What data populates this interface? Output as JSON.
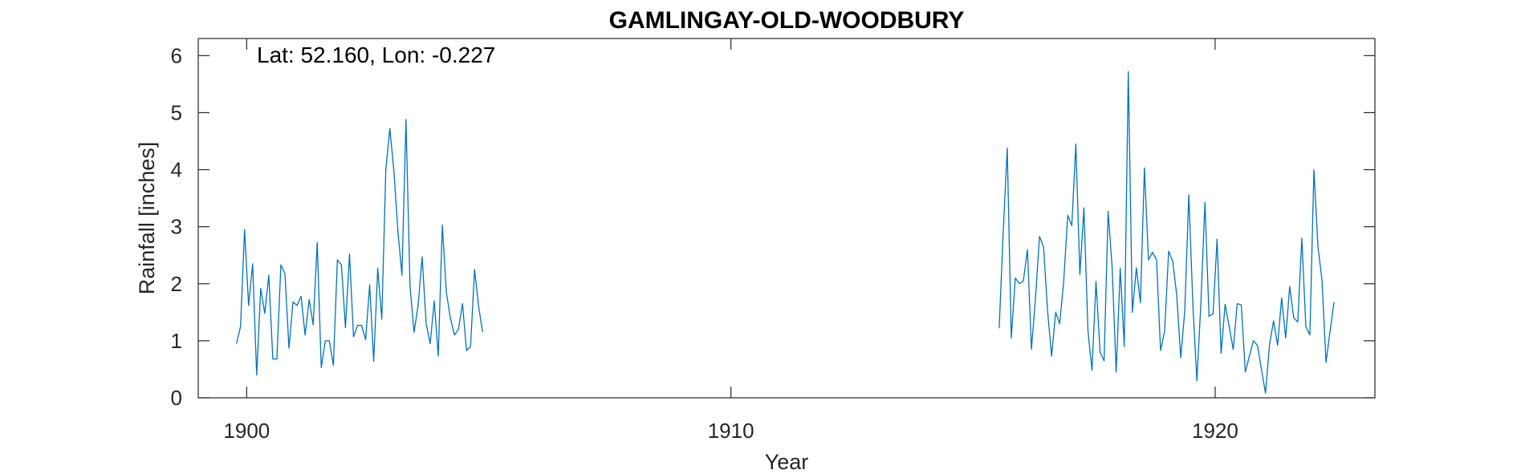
{
  "chart_data": {
    "type": "line",
    "title": "GAMLINGAY-OLD-WOODBURY",
    "xlabel": "Year",
    "ylabel": "Rainfall [inches]",
    "annotation": "Lat: 52.160, Lon: -0.227",
    "xlim": [
      1899,
      1923.3
    ],
    "ylim": [
      0,
      6.3
    ],
    "xticks": [
      1900,
      1910,
      1920
    ],
    "yticks": [
      0,
      1,
      2,
      3,
      4,
      5,
      6
    ],
    "grid": false,
    "color": "#0072BD",
    "series": [
      {
        "start": 1899.79,
        "values": [
          0.95,
          1.25,
          2.95,
          1.62,
          2.35,
          0.4,
          1.92,
          1.48,
          2.15,
          0.68,
          0.68,
          2.33,
          2.18,
          0.87,
          1.68,
          1.62,
          1.78,
          1.1,
          1.72,
          1.28,
          2.72,
          0.53,
          1.0,
          1.0,
          0.57,
          2.42,
          2.33,
          1.23,
          2.52,
          1.07,
          1.27,
          1.27,
          1.02,
          1.98,
          0.64,
          2.27,
          1.38,
          4.0,
          4.72,
          3.98,
          2.92,
          2.15,
          4.88,
          1.95,
          1.15,
          1.62,
          2.47,
          1.3,
          0.95,
          1.7,
          0.73,
          3.03,
          1.85,
          1.4,
          1.1,
          1.2,
          1.65,
          0.83,
          0.9,
          2.25,
          1.6,
          1.15
        ]
      },
      {
        "start": 1915.54,
        "values": [
          1.22,
          2.9,
          4.38,
          1.05,
          2.1,
          2.0,
          2.05,
          2.6,
          0.85,
          1.75,
          2.83,
          2.65,
          1.52,
          0.73,
          1.5,
          1.3,
          2.05,
          3.2,
          3.02,
          4.45,
          2.16,
          3.33,
          1.18,
          0.48,
          2.04,
          0.8,
          0.65,
          3.27,
          2.28,
          0.45,
          2.27,
          0.9,
          5.72,
          1.5,
          2.28,
          1.67,
          4.03,
          2.42,
          2.55,
          2.42,
          0.83,
          1.17,
          2.57,
          2.4,
          1.8,
          0.7,
          1.53,
          3.56,
          1.64,
          0.3,
          1.68,
          3.43,
          1.43,
          1.47,
          2.78,
          0.78,
          1.64,
          1.25,
          0.85,
          1.65,
          1.63,
          0.45,
          0.73,
          1.0,
          0.92,
          0.5,
          0.08,
          0.93,
          1.35,
          0.92,
          1.75,
          1.05,
          1.95,
          1.4,
          1.33,
          2.8,
          1.25,
          1.1,
          4.0,
          2.65,
          2.07,
          0.62,
          1.17,
          1.68
        ]
      }
    ]
  }
}
